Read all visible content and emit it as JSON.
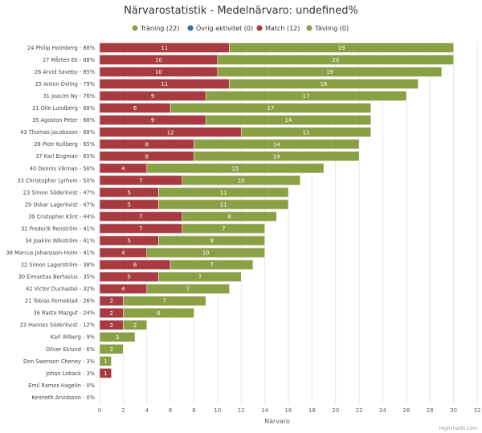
{
  "chart_data": {
    "type": "bar",
    "orientation": "horizontal",
    "stacked": true,
    "title": "Närvarostatistik - Medelnärvaro: undefined%",
    "xlabel": "Närvaro",
    "xlim": [
      0,
      32
    ],
    "xticks": [
      "0",
      "2",
      "4",
      "6",
      "8",
      "10",
      "12",
      "14",
      "16",
      "18",
      "20",
      "22",
      "24",
      "26",
      "28",
      "30",
      "32"
    ],
    "grid": true,
    "legend_position": "top",
    "categories": [
      "24 Philip Holmberg - 88%",
      "27 Mårten Ek - 88%",
      "26 Arvid Saveby - 85%",
      "25 Anton Övling - 79%",
      "31 Joacim Ny - 76%",
      "21 Olle Lundberg - 68%",
      "35 Agoston Peter - 68%",
      "43 Thomas Jacobsson - 68%",
      "28 Piotr Kullberg - 65%",
      "37 Karl Engman - 65%",
      "40 Dennis Vikman - 56%",
      "33 Christopher Lyrhem - 50%",
      "23 Simon Söderkvist - 47%",
      "29 Oskar Lagerkvist - 47%",
      "39 Cristopher Klint - 44%",
      "32 Frederik Renström - 41%",
      "34 Joakim Wikström - 41%",
      "38 Marcus Johansson-Holm - 41%",
      "22 Simon Lagerström - 38%",
      "30 Eimantas Bertasius - 35%",
      "42 Victor Duchastel - 32%",
      "21 Tobias Perneblad - 26%",
      "36 Rasto Mazgut - 24%",
      "23 Hannes Söderkvist - 12%",
      "Karl Wiberg - 9%",
      "Oliver Eklund - 6%",
      "Don Swenson Cheney - 3%",
      "Johan Leback - 3%",
      "Emil Ramos Hagelin - 0%",
      "Kenneth Arvidsson - 0%"
    ],
    "series": [
      {
        "name": "Match (12)",
        "color": "#a83a42",
        "values": [
          11,
          10,
          10,
          11,
          9,
          6,
          9,
          12,
          8,
          8,
          4,
          7,
          5,
          5,
          7,
          7,
          5,
          4,
          6,
          5,
          4,
          2,
          2,
          2,
          0,
          0,
          0,
          1,
          0,
          0
        ]
      },
      {
        "name": "Träning (22)",
        "color": "#8aa045",
        "values": [
          19,
          20,
          19,
          16,
          17,
          17,
          14,
          11,
          14,
          14,
          15,
          10,
          11,
          11,
          8,
          7,
          9,
          10,
          7,
          7,
          7,
          7,
          6,
          2,
          3,
          2,
          1,
          0,
          0,
          0
        ]
      }
    ],
    "legend": [
      {
        "name": "Träning (22)",
        "color": "#8aa045"
      },
      {
        "name": "Övrig aktivitet (0)",
        "color": "#2f6ea6"
      },
      {
        "name": "Match (12)",
        "color": "#a83a42"
      },
      {
        "name": "Tävling (0)",
        "color": "#8aa045"
      }
    ]
  },
  "credits": "Highcharts.com"
}
